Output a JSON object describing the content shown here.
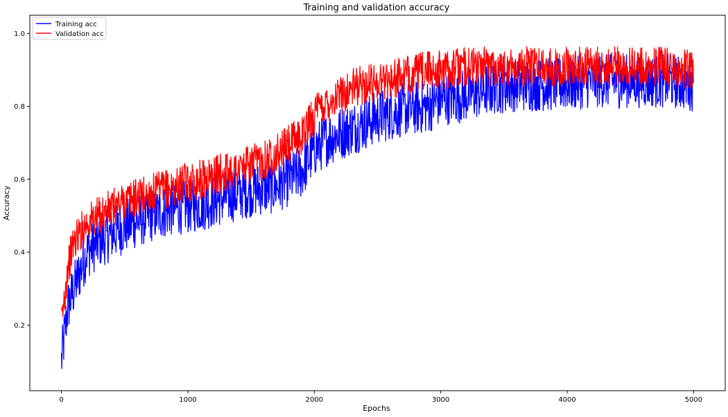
{
  "chart_data": {
    "type": "line",
    "title": "Training and validation accuracy",
    "xlabel": "Epochs",
    "ylabel": "Accuracy",
    "xlim": [
      -250,
      5250
    ],
    "ylim": [
      0.02,
      1.05
    ],
    "grid": false,
    "legend_position": "top-left",
    "x_ticks": [
      0,
      1000,
      2000,
      3000,
      4000,
      5000
    ],
    "x_tick_labels": [
      "0",
      "1000",
      "2000",
      "3000",
      "4000",
      "5000"
    ],
    "y_ticks": [
      0.2,
      0.4,
      0.6,
      0.8,
      1.0
    ],
    "y_tick_labels": [
      "0.2",
      "0.4",
      "0.6",
      "0.8",
      "1.0"
    ],
    "x": [
      0,
      50,
      100,
      200,
      300,
      400,
      500,
      700,
      900,
      1100,
      1300,
      1500,
      1700,
      1900,
      2000,
      2100,
      2300,
      2500,
      2700,
      2900,
      3000,
      3200,
      3400,
      3600,
      3800,
      4000,
      4200,
      4400,
      4600,
      4800,
      5000
    ],
    "series": [
      {
        "name": "Training acc",
        "color": "#0000ff",
        "values": [
          0.1,
          0.25,
          0.3,
          0.4,
          0.43,
          0.45,
          0.47,
          0.5,
          0.52,
          0.53,
          0.55,
          0.57,
          0.58,
          0.62,
          0.68,
          0.71,
          0.74,
          0.77,
          0.79,
          0.8,
          0.82,
          0.83,
          0.85,
          0.86,
          0.86,
          0.86,
          0.87,
          0.87,
          0.87,
          0.87,
          0.86
        ]
      },
      {
        "name": "Validation acc",
        "color": "#ff0000",
        "values": [
          0.2,
          0.36,
          0.43,
          0.48,
          0.5,
          0.52,
          0.54,
          0.56,
          0.58,
          0.6,
          0.62,
          0.64,
          0.67,
          0.72,
          0.78,
          0.81,
          0.85,
          0.87,
          0.88,
          0.9,
          0.9,
          0.91,
          0.91,
          0.91,
          0.91,
          0.91,
          0.91,
          0.91,
          0.91,
          0.91,
          0.9
        ]
      }
    ]
  }
}
